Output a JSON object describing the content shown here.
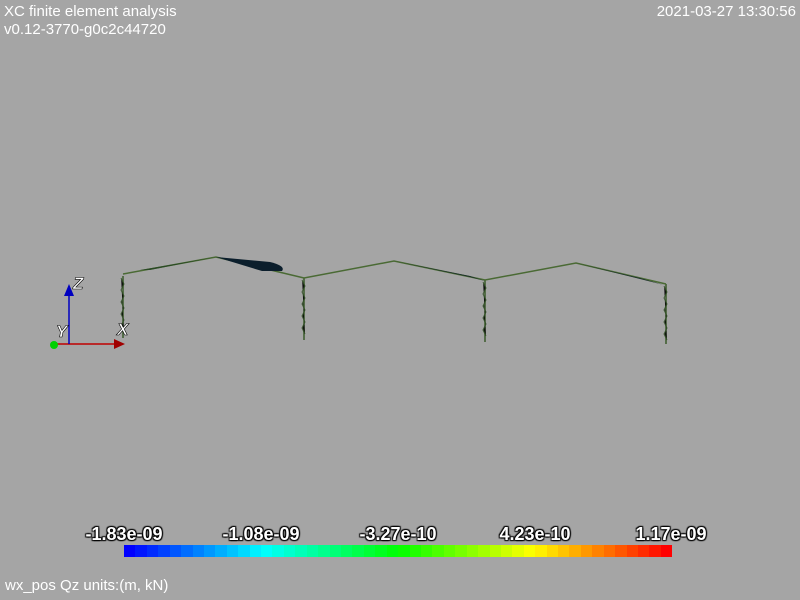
{
  "header": {
    "title": "XC finite element analysis",
    "version": "v0.12-3770-g0c2c44720",
    "timestamp": "2021-03-27 13:30:56"
  },
  "axes_widget": {
    "x_label": "X",
    "y_label": "Y",
    "z_label": "Z",
    "x_color": "#c00000",
    "y_color": "#00d000",
    "z_color": "#0000c0"
  },
  "colorbar": {
    "ticks": [
      "-1.83e-09",
      "-1.08e-09",
      "-3.27e-10",
      "4.23e-10",
      "1.17e-09"
    ],
    "min": -1.83e-09,
    "max": 1.17e-09,
    "colors": [
      "#0000ff",
      "#00ffff",
      "#00ff00",
      "#ffff00",
      "#ff0000"
    ]
  },
  "caption": "wx_pos Qz units:(m, kN)",
  "structure": {
    "member_color": "#3a5a2a",
    "diagram_color": "#0b1e2c"
  }
}
